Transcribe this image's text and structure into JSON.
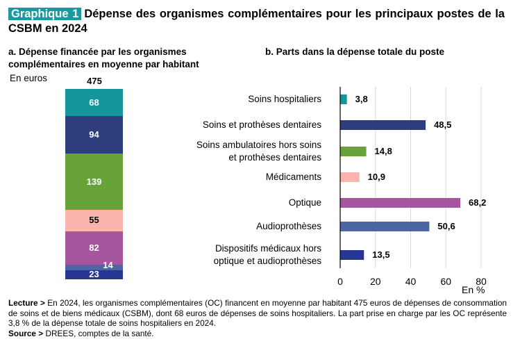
{
  "header": {
    "badge": "Graphique 1",
    "title": "Dépense des organismes complémentaires pour les principaux postes de la CSBM en 2024"
  },
  "chart_data": [
    {
      "type": "bar",
      "stacked": true,
      "title": "a. Dépense financée par les organismes complémentaires en moyenne par habitant",
      "unit": "En euros",
      "total": 475,
      "total_label": "475",
      "series": [
        {
          "name": "Soins hospitaliers",
          "value": 68,
          "label": "68",
          "color": "#13979c",
          "label_color": "#ffffff"
        },
        {
          "name": "Soins et prothèses dentaires",
          "value": 94,
          "label": "94",
          "color": "#2e3e7c",
          "label_color": "#ffffff"
        },
        {
          "name": "Soins ambulatoires hors soins et prothèses dentaires",
          "value": 139,
          "label": "139",
          "color": "#68a33a",
          "label_color": "#ffffff"
        },
        {
          "name": "Médicaments",
          "value": 55,
          "label": "55",
          "color": "#fbb4ae",
          "label_color": "#000000"
        },
        {
          "name": "Optique",
          "value": 82,
          "label": "82",
          "color": "#a6569f",
          "label_color": "#ffffff"
        },
        {
          "name": "Audioprothèses",
          "value": 14,
          "label": "14",
          "color": "#4a66a3",
          "label_color": "#ffffff"
        },
        {
          "name": "Dispositifs médicaux hors optique et audioprothèses",
          "value": 23,
          "label": "23",
          "color": "#283593",
          "label_color": "#ffffff"
        }
      ]
    },
    {
      "type": "bar",
      "orientation": "horizontal",
      "title": "b. Parts dans la dépense totale du poste",
      "xlabel": "En %",
      "xlim": [
        0,
        80
      ],
      "xticks": [
        0,
        20,
        40,
        60,
        80
      ],
      "xtick_labels": [
        "0",
        "20",
        "40",
        "60",
        "80"
      ],
      "grid": true,
      "categories": [
        [
          "Soins hospitaliers"
        ],
        [
          "Soins et prothèses dentaires"
        ],
        [
          "Soins ambulatoires hors soins",
          "et prothèses dentaires"
        ],
        [
          "Médicaments"
        ],
        [
          "Optique"
        ],
        [
          "Audioprothèses"
        ],
        [
          "Dispositifs médicaux hors",
          "optique et audioprothèses"
        ]
      ],
      "values": [
        3.8,
        48.5,
        14.8,
        10.9,
        68.2,
        50.6,
        13.5
      ],
      "value_labels": [
        "3,8",
        "48,5",
        "14,8",
        "10,9",
        "68,2",
        "50,6",
        "13,5"
      ],
      "colors": [
        "#13979c",
        "#2e3e7c",
        "#68a33a",
        "#fbb4ae",
        "#a6569f",
        "#4a66a3",
        "#283593"
      ]
    }
  ],
  "notes": {
    "lecture_label": "Lecture >",
    "lecture_text": " En 2024, les organismes complémentaires (OC) financent en moyenne par habitant 475 euros de dépenses de consommation de soins et de biens médicaux (CSBM), dont 68 euros de dépenses de soins hospitaliers. La part prise en charge par les OC représente 3,8 % de la dépense totale de soins hospitaliers en 2024.",
    "source_label": "Source >",
    "source_text": " DREES, comptes de la santé."
  }
}
